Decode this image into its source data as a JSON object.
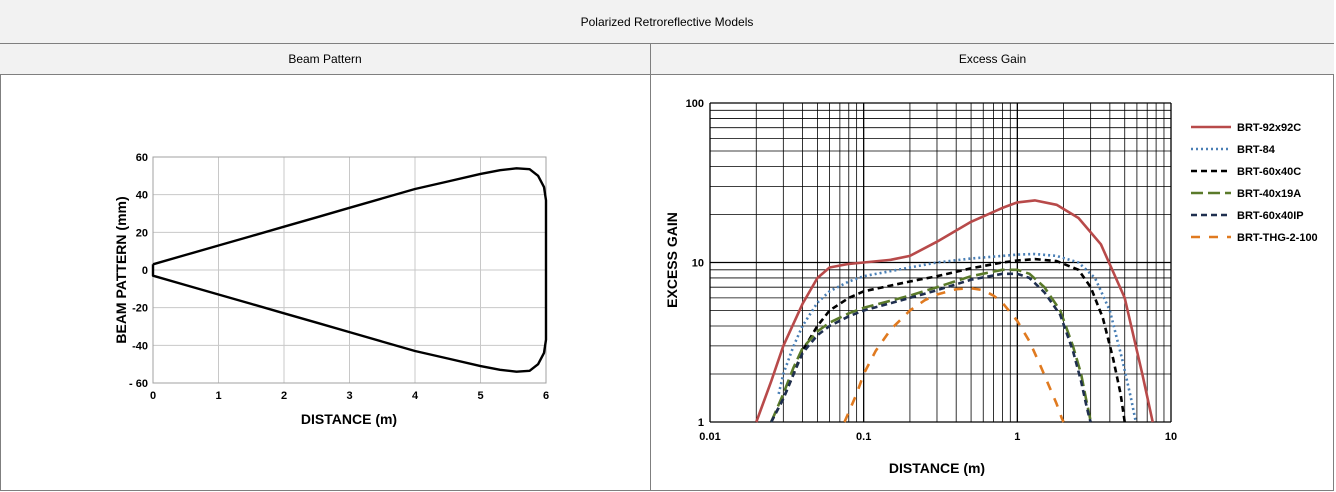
{
  "table": {
    "title": "Polarized Retroreflective Models",
    "col_headers": [
      "Beam Pattern",
      "Excess Gain"
    ]
  },
  "chart_data": [
    {
      "type": "line",
      "xlabel": "DISTANCE (m)",
      "ylabel": "BEAM PATTERN (mm)",
      "xlim": [
        0,
        6
      ],
      "ylim": [
        -60,
        60
      ],
      "x_ticks": [
        "0",
        "1",
        "2",
        "3",
        "4",
        "5",
        "6"
      ],
      "y_ticks": [
        "60",
        "40",
        "20",
        "0",
        "-20",
        "-40",
        "- 60"
      ],
      "grid": true,
      "series": [
        {
          "color": "#000000",
          "x": [
            0,
            0.5,
            1,
            1.5,
            2,
            2.5,
            3,
            3.5,
            4,
            4.5,
            5,
            5.3,
            5.55,
            5.75,
            5.88,
            5.97,
            6.0,
            6.0,
            5.97,
            5.88,
            5.75,
            5.55,
            5.3,
            5,
            4.5,
            4,
            3.5,
            3,
            2.5,
            2,
            1.5,
            1,
            0.5,
            0,
            0
          ],
          "y": [
            3,
            8,
            13,
            18,
            23,
            28,
            33,
            38,
            43,
            47,
            51,
            53,
            54,
            53.5,
            50,
            44,
            37,
            -37,
            -44,
            -50,
            -53.5,
            -54,
            -53,
            -51,
            -47,
            -43,
            -38,
            -33,
            -28,
            -23,
            -18,
            -13,
            -8,
            -3,
            3
          ]
        }
      ]
    },
    {
      "type": "line",
      "xlabel": "DISTANCE (m)",
      "ylabel": "EXCESS GAIN",
      "x_scale": "log",
      "y_scale": "log",
      "xlim": [
        0.01,
        10
      ],
      "ylim": [
        1,
        100
      ],
      "x_ticks": [
        "0.01",
        "0.1",
        "1",
        "10"
      ],
      "y_ticks": [
        "100",
        "10",
        "1"
      ],
      "grid": true,
      "legend_position": "right",
      "series": [
        {
          "name": "BRT-92x92C",
          "color": "#b84a4a",
          "dash": "solid",
          "x": [
            0.02,
            0.025,
            0.03,
            0.04,
            0.05,
            0.06,
            0.08,
            0.1,
            0.15,
            0.2,
            0.3,
            0.5,
            0.8,
            1.0,
            1.3,
            1.8,
            2.5,
            3.5,
            5,
            6.5,
            7.6
          ],
          "y": [
            1.0,
            1.8,
            3.0,
            5.5,
            8.0,
            9.3,
            9.8,
            10.0,
            10.4,
            11.0,
            13.5,
            18.0,
            22.0,
            23.8,
            24.5,
            23.0,
            19.0,
            13.0,
            6.0,
            2.0,
            1.0
          ]
        },
        {
          "name": "BRT-84",
          "color": "#4a7fb5",
          "dash": "dotted",
          "x": [
            0.028,
            0.03,
            0.035,
            0.04,
            0.05,
            0.06,
            0.08,
            0.1,
            0.2,
            0.3,
            0.5,
            0.8,
            1.0,
            1.3,
            1.8,
            2.5,
            3.2,
            4,
            4.8,
            5.5,
            5.9
          ],
          "y": [
            1.5,
            2.0,
            3.0,
            4.0,
            5.6,
            6.6,
            7.6,
            8.2,
            9.3,
            10.0,
            10.6,
            11.0,
            11.2,
            11.3,
            11.0,
            10.0,
            8.0,
            5.0,
            2.5,
            1.4,
            1.0
          ]
        },
        {
          "name": "BRT-60x40C",
          "color": "#000000",
          "dash": "dashed",
          "x": [
            0.025,
            0.03,
            0.035,
            0.04,
            0.05,
            0.06,
            0.08,
            0.1,
            0.2,
            0.3,
            0.5,
            0.8,
            1.0,
            1.3,
            1.8,
            2.5,
            3.0,
            3.6,
            4.2,
            4.7,
            5.0
          ],
          "y": [
            1.0,
            1.4,
            2.0,
            2.8,
            4.0,
            5.0,
            6.0,
            6.6,
            7.6,
            8.2,
            9.2,
            10.0,
            10.3,
            10.5,
            10.2,
            9.0,
            7.0,
            4.5,
            2.5,
            1.5,
            1.0
          ]
        },
        {
          "name": "BRT-40x19A",
          "color": "#5a7a2a",
          "dash": "longdash",
          "x": [
            0.025,
            0.03,
            0.035,
            0.04,
            0.05,
            0.06,
            0.08,
            0.1,
            0.2,
            0.3,
            0.5,
            0.8,
            1.0,
            1.2,
            1.5,
            1.9,
            2.3,
            2.6,
            2.8,
            2.95,
            3.0
          ],
          "y": [
            1.0,
            1.5,
            2.2,
            2.9,
            3.7,
            4.2,
            4.8,
            5.2,
            6.2,
            7.0,
            8.2,
            9.0,
            9.0,
            8.5,
            7.0,
            5.0,
            3.0,
            2.0,
            1.4,
            1.1,
            1.0
          ]
        },
        {
          "name": "BRT-60x40IP",
          "color": "#1f2f4f",
          "dash": "dashed",
          "x": [
            0.025,
            0.03,
            0.035,
            0.04,
            0.05,
            0.06,
            0.08,
            0.1,
            0.2,
            0.3,
            0.5,
            0.8,
            1.0,
            1.2,
            1.5,
            1.9,
            2.3,
            2.6,
            2.8,
            2.95,
            3.0
          ],
          "y": [
            1.0,
            1.4,
            2.0,
            2.7,
            3.5,
            4.0,
            4.6,
            5.0,
            6.0,
            6.7,
            7.8,
            8.5,
            8.5,
            8.0,
            6.5,
            4.7,
            2.8,
            1.8,
            1.3,
            1.05,
            1.0
          ]
        },
        {
          "name": "BRT-THG-2-100",
          "color": "#e07a20",
          "dash": "coarsedash",
          "x": [
            0.075,
            0.09,
            0.1,
            0.12,
            0.15,
            0.2,
            0.25,
            0.3,
            0.4,
            0.5,
            0.6,
            0.7,
            0.8,
            1.0,
            1.2,
            1.4,
            1.6,
            1.8,
            1.95,
            2.0
          ],
          "y": [
            1.0,
            1.5,
            2.0,
            2.8,
            3.8,
            5.0,
            5.8,
            6.3,
            6.8,
            6.9,
            6.7,
            6.2,
            5.6,
            4.3,
            3.2,
            2.3,
            1.7,
            1.3,
            1.05,
            1.0
          ]
        }
      ]
    }
  ]
}
